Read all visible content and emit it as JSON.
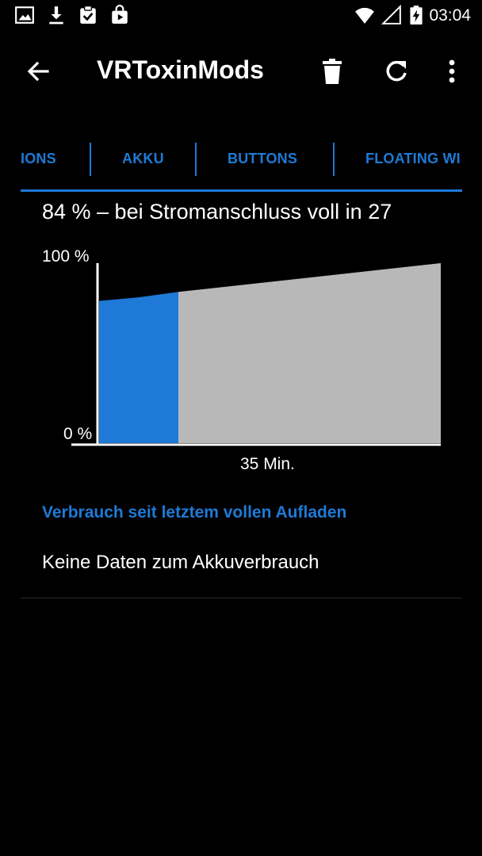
{
  "status_bar": {
    "time": "03:04",
    "icons": [
      "image-icon",
      "download-icon",
      "clipboard-check-icon",
      "play-store-icon",
      "wifi-icon",
      "no-signal-icon",
      "battery-charging-icon"
    ]
  },
  "toolbar": {
    "title": "VRToxinMods",
    "icons": [
      "back-arrow-icon",
      "trash-icon",
      "refresh-icon",
      "more-vert-icon"
    ]
  },
  "tabs": [
    {
      "label": "IONS"
    },
    {
      "label": "AKKU"
    },
    {
      "label": "BUTTONS"
    },
    {
      "label": "FLOATING WI"
    }
  ],
  "battery": {
    "summary": "84 % – bei Stromanschluss voll in 27",
    "accent_color": "#1e7ad6",
    "projection_color": "#b8b8b8"
  },
  "chart_data": {
    "type": "area",
    "y_max_label": "100 %",
    "y_min_label": "0 %",
    "x_label": "35 Min.",
    "ylim": [
      0,
      100
    ],
    "series": [
      {
        "values": [
          79,
          81,
          84
        ]
      },
      {
        "values": [
          84,
          100
        ]
      }
    ]
  },
  "usage_section": {
    "title": "Verbrauch seit letztem vollen Aufladen",
    "empty_text": "Keine Daten zum Akkuverbrauch"
  }
}
